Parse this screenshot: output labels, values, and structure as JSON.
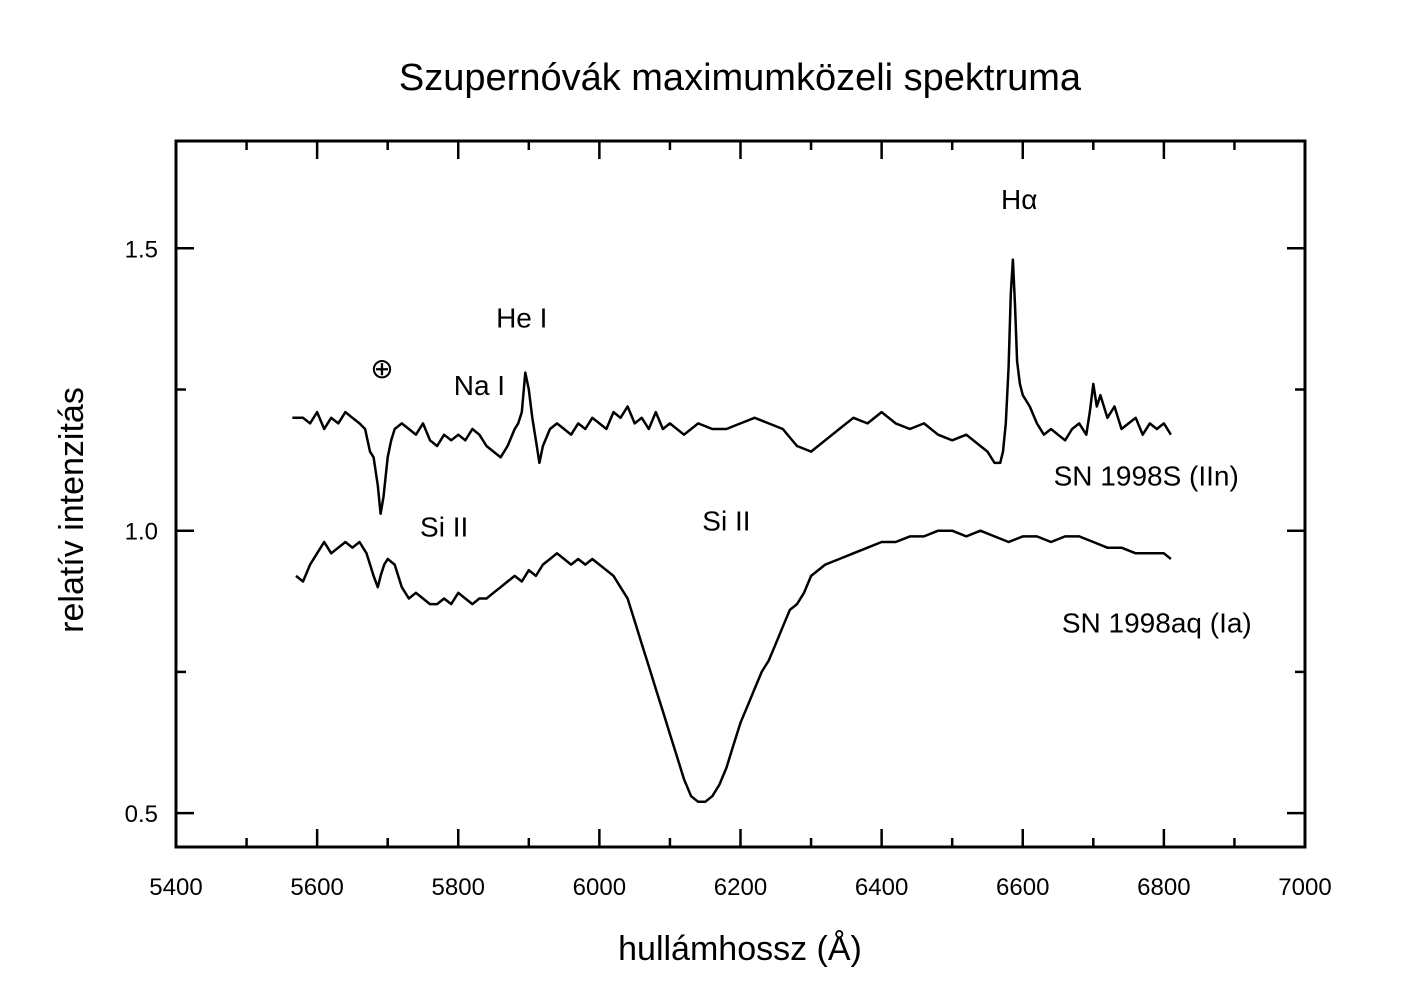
{
  "chart_data": {
    "type": "line",
    "title": "Szupernóvák maximumközeli spektruma",
    "xlabel": "hullámhossz (Å)",
    "ylabel": "relatív intenzitás",
    "xlim": [
      5400,
      7000
    ],
    "ylim": [
      0.44,
      1.69
    ],
    "x_ticks": [
      5400,
      5600,
      5800,
      6000,
      6200,
      6400,
      6600,
      6800,
      7000
    ],
    "x_tick_labels": [
      "5400",
      "5600",
      "5800",
      "6000",
      "6200",
      "6400",
      "6600",
      "6800",
      "7000"
    ],
    "x_minor_ticks": [
      5500,
      5700,
      5900,
      6100,
      6300,
      6500,
      6700,
      6900
    ],
    "y_ticks": [
      0.5,
      1.0,
      1.5
    ],
    "y_tick_labels": [
      "0.5",
      "1.0",
      "1.5"
    ],
    "y_minor_ticks": [
      0.75,
      1.25
    ],
    "grid": false,
    "legend": "none",
    "series": [
      {
        "name": "SN 1998S (IIn)",
        "x": [
          5565,
          5580,
          5590,
          5600,
          5610,
          5620,
          5630,
          5640,
          5650,
          5660,
          5668,
          5675,
          5680,
          5686,
          5690,
          5694,
          5700,
          5705,
          5710,
          5720,
          5730,
          5740,
          5750,
          5760,
          5770,
          5780,
          5790,
          5800,
          5810,
          5820,
          5830,
          5840,
          5850,
          5860,
          5870,
          5880,
          5885,
          5890,
          5895,
          5900,
          5905,
          5910,
          5915,
          5920,
          5930,
          5940,
          5950,
          5960,
          5970,
          5980,
          5990,
          6000,
          6010,
          6020,
          6030,
          6040,
          6050,
          6060,
          6070,
          6080,
          6090,
          6100,
          6120,
          6140,
          6160,
          6180,
          6200,
          6220,
          6240,
          6260,
          6280,
          6300,
          6320,
          6340,
          6360,
          6380,
          6400,
          6420,
          6440,
          6460,
          6480,
          6500,
          6520,
          6540,
          6550,
          6560,
          6568,
          6572,
          6576,
          6580,
          6583,
          6586,
          6589,
          6592,
          6596,
          6600,
          6610,
          6620,
          6630,
          6640,
          6650,
          6660,
          6670,
          6680,
          6690,
          6695,
          6700,
          6705,
          6710,
          6720,
          6730,
          6740,
          6750,
          6760,
          6770,
          6780,
          6790,
          6800,
          6810
        ],
        "y": [
          1.2,
          1.2,
          1.19,
          1.21,
          1.18,
          1.2,
          1.19,
          1.21,
          1.2,
          1.19,
          1.18,
          1.14,
          1.13,
          1.08,
          1.03,
          1.06,
          1.13,
          1.16,
          1.18,
          1.19,
          1.18,
          1.17,
          1.19,
          1.16,
          1.15,
          1.17,
          1.16,
          1.17,
          1.16,
          1.18,
          1.17,
          1.15,
          1.14,
          1.13,
          1.15,
          1.18,
          1.19,
          1.21,
          1.28,
          1.25,
          1.2,
          1.16,
          1.12,
          1.15,
          1.18,
          1.19,
          1.18,
          1.17,
          1.19,
          1.18,
          1.2,
          1.19,
          1.18,
          1.21,
          1.2,
          1.22,
          1.19,
          1.2,
          1.18,
          1.21,
          1.18,
          1.19,
          1.17,
          1.19,
          1.18,
          1.18,
          1.19,
          1.2,
          1.19,
          1.18,
          1.15,
          1.14,
          1.16,
          1.18,
          1.2,
          1.19,
          1.21,
          1.19,
          1.18,
          1.19,
          1.17,
          1.16,
          1.17,
          1.15,
          1.14,
          1.12,
          1.12,
          1.14,
          1.19,
          1.29,
          1.42,
          1.48,
          1.4,
          1.3,
          1.26,
          1.24,
          1.22,
          1.19,
          1.17,
          1.18,
          1.17,
          1.16,
          1.18,
          1.19,
          1.17,
          1.21,
          1.26,
          1.22,
          1.24,
          1.2,
          1.22,
          1.18,
          1.19,
          1.2,
          1.17,
          1.19,
          1.18,
          1.19,
          1.17
        ]
      },
      {
        "name": "SN 1998aq (Ia)",
        "x": [
          5570,
          5580,
          5590,
          5600,
          5610,
          5620,
          5630,
          5640,
          5650,
          5660,
          5670,
          5680,
          5686,
          5690,
          5695,
          5700,
          5710,
          5720,
          5730,
          5740,
          5750,
          5760,
          5770,
          5780,
          5790,
          5800,
          5810,
          5820,
          5830,
          5840,
          5850,
          5860,
          5870,
          5880,
          5890,
          5900,
          5910,
          5920,
          5930,
          5940,
          5950,
          5960,
          5970,
          5980,
          5990,
          6000,
          6010,
          6020,
          6030,
          6040,
          6050,
          6060,
          6070,
          6080,
          6090,
          6100,
          6110,
          6120,
          6130,
          6140,
          6150,
          6160,
          6170,
          6180,
          6190,
          6200,
          6210,
          6220,
          6230,
          6240,
          6250,
          6260,
          6270,
          6280,
          6290,
          6300,
          6320,
          6340,
          6360,
          6380,
          6400,
          6420,
          6440,
          6460,
          6480,
          6500,
          6520,
          6540,
          6560,
          6580,
          6600,
          6620,
          6640,
          6660,
          6680,
          6700,
          6720,
          6740,
          6760,
          6780,
          6800,
          6810
        ],
        "y": [
          0.92,
          0.91,
          0.94,
          0.96,
          0.98,
          0.96,
          0.97,
          0.98,
          0.97,
          0.98,
          0.96,
          0.92,
          0.9,
          0.92,
          0.94,
          0.95,
          0.94,
          0.9,
          0.88,
          0.89,
          0.88,
          0.87,
          0.87,
          0.88,
          0.87,
          0.89,
          0.88,
          0.87,
          0.88,
          0.88,
          0.89,
          0.9,
          0.91,
          0.92,
          0.91,
          0.93,
          0.92,
          0.94,
          0.95,
          0.96,
          0.95,
          0.94,
          0.95,
          0.94,
          0.95,
          0.94,
          0.93,
          0.92,
          0.9,
          0.88,
          0.84,
          0.8,
          0.76,
          0.72,
          0.68,
          0.64,
          0.6,
          0.56,
          0.53,
          0.52,
          0.52,
          0.53,
          0.55,
          0.58,
          0.62,
          0.66,
          0.69,
          0.72,
          0.75,
          0.77,
          0.8,
          0.83,
          0.86,
          0.87,
          0.89,
          0.92,
          0.94,
          0.95,
          0.96,
          0.97,
          0.98,
          0.98,
          0.99,
          0.99,
          1.0,
          1.0,
          0.99,
          1.0,
          0.99,
          0.98,
          0.99,
          0.99,
          0.98,
          0.99,
          0.99,
          0.98,
          0.97,
          0.97,
          0.96,
          0.96,
          0.96,
          0.95
        ]
      }
    ],
    "annotations": [
      {
        "text": "Hα",
        "x": 6595,
        "y": 1.57
      },
      {
        "text": "He I",
        "x": 5890,
        "y": 1.36
      },
      {
        "text": "Na I",
        "x": 5830,
        "y": 1.24
      },
      {
        "text": "⊕",
        "x": 5692,
        "y": 1.27
      },
      {
        "text": "Si II",
        "x": 5780,
        "y": 0.99
      },
      {
        "text": "Si II",
        "x": 6180,
        "y": 1.0
      },
      {
        "text": "SN 1998S (IIn)",
        "x": 6775,
        "y": 1.08
      },
      {
        "text": "SN 1998aq (Ia)",
        "x": 6790,
        "y": 0.82
      }
    ]
  }
}
